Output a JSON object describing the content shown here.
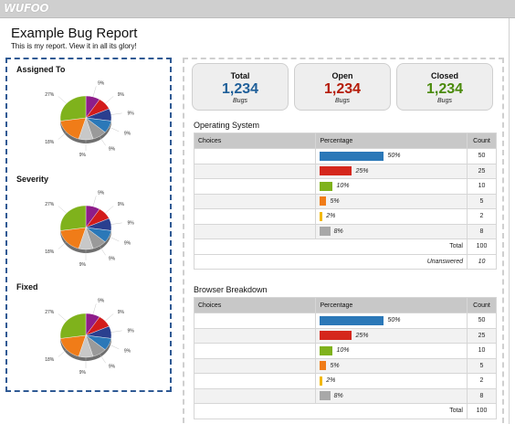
{
  "app": {
    "logo": "WUFOO"
  },
  "report": {
    "title": "Example Bug Report",
    "subtitle": "This is my report. View it in all its glory!"
  },
  "pies": [
    {
      "label": "Assigned To",
      "labels": [
        "9%",
        "9%",
        "9%",
        "9%",
        "9%",
        "9%",
        "18%",
        "27%"
      ]
    },
    {
      "label": "Severity",
      "labels": [
        "9%",
        "9%",
        "9%",
        "9%",
        "9%",
        "9%",
        "18%",
        "27%"
      ]
    },
    {
      "label": "Fixed",
      "labels": [
        "9%",
        "9%",
        "9%",
        "9%",
        "9%",
        "9%",
        "18%",
        "27%"
      ]
    }
  ],
  "stats": [
    {
      "label": "Total",
      "value": "1,234",
      "sub": "Bugs",
      "color": "#1f5f99"
    },
    {
      "label": "Open",
      "value": "1,234",
      "sub": "Bugs",
      "color": "#b51c08"
    },
    {
      "label": "Closed",
      "value": "1,234",
      "sub": "Bugs",
      "color": "#4a8a0b"
    }
  ],
  "tables": [
    {
      "title": "Operating System",
      "headers": [
        "Choices",
        "Percentage",
        "Count"
      ],
      "rows": [
        {
          "choice": "",
          "pct": "50%",
          "count": "50",
          "color": "#2b78b8"
        },
        {
          "choice": "",
          "pct": "25%",
          "count": "25",
          "color": "#d5271c"
        },
        {
          "choice": "",
          "pct": "10%",
          "count": "10",
          "color": "#7fb21c"
        },
        {
          "choice": "",
          "pct": "5%",
          "count": "5",
          "color": "#f07c18"
        },
        {
          "choice": "",
          "pct": "2%",
          "count": "2",
          "color": "#f2b800"
        },
        {
          "choice": "",
          "pct": "8%",
          "count": "8",
          "color": "#a8a8a8"
        }
      ],
      "total_label": "Total",
      "total_value": "100",
      "unanswered_label": "Unanswered",
      "unanswered_value": "10"
    },
    {
      "title": "Browser Breakdown",
      "headers": [
        "Choices",
        "Percentage",
        "Count"
      ],
      "rows": [
        {
          "choice": "",
          "pct": "50%",
          "count": "50",
          "color": "#2b78b8"
        },
        {
          "choice": "",
          "pct": "25%",
          "count": "25",
          "color": "#d5271c"
        },
        {
          "choice": "",
          "pct": "10%",
          "count": "10",
          "color": "#7fb21c"
        },
        {
          "choice": "",
          "pct": "5%",
          "count": "5",
          "color": "#f07c18"
        },
        {
          "choice": "",
          "pct": "2%",
          "count": "2",
          "color": "#f2b800"
        },
        {
          "choice": "",
          "pct": "8%",
          "count": "8",
          "color": "#a8a8a8"
        }
      ],
      "total_label": "Total",
      "total_value": "100"
    }
  ]
}
